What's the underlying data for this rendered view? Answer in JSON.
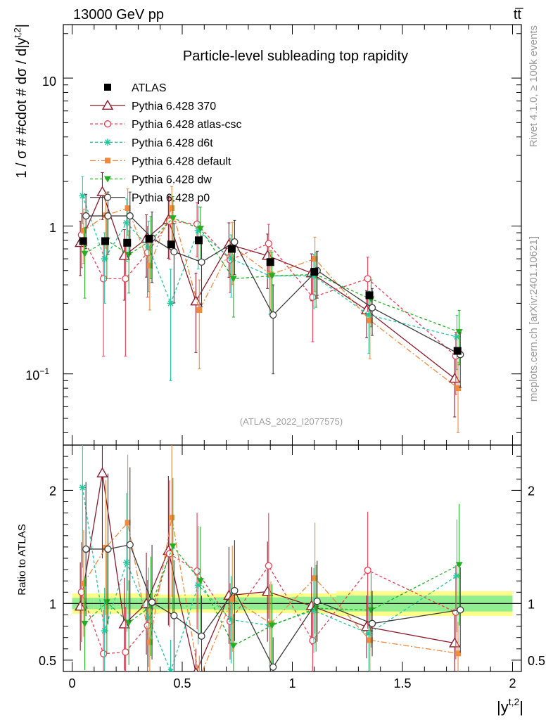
{
  "header": {
    "energy_label": "13000 GeV pp",
    "process_label": "tt̅"
  },
  "side_labels": {
    "rivet": "Rivet 4.1.0, ≥ 100k events",
    "mcplots": "mcplots.cern.ch [arXiv:2401.10621]"
  },
  "chart_data": {
    "type": "line",
    "title": "Particle-level subleading top rapidity",
    "analysis_id": "(ATLAS_2022_I2077575)",
    "ylabel": "1 / σ # #cdot # dσ / d|y^{t,2}|",
    "ylabel_main": "1 / σ # #cdot # dσ / d|y",
    "ylabel_sup": "t,2",
    "ylabel_close": "|",
    "xlabel_main": "|y",
    "xlabel_sup": "t,2",
    "xlabel_close": "|",
    "ratio_ylabel": "Ratio to ATLAS",
    "yscale": "log",
    "ylim": [
      0.033,
      23
    ],
    "ratio_ylim": [
      0.4,
      2.4
    ],
    "xlim": [
      -0.04,
      2.04
    ],
    "x_ticks": [
      0,
      0.5,
      1,
      1.5,
      2
    ],
    "x_tick_labels": [
      "0",
      "0.5",
      "1",
      "1.5",
      "2"
    ],
    "y_tick_labels": {
      "ten": "10",
      "one": "1",
      "tenth_base": "10",
      "tenth_exp": "−1"
    },
    "ratio_ticks": [
      0.5,
      1,
      2
    ],
    "ratio_tick_labels": [
      "0.5",
      "1",
      "2"
    ],
    "bin_edges": [
      0,
      0.1,
      0.2,
      0.3,
      0.4,
      0.5,
      0.65,
      0.8,
      1.0,
      1.2,
      1.5,
      2.0
    ],
    "x": [
      0.05,
      0.15,
      0.25,
      0.35,
      0.45,
      0.575,
      0.725,
      0.9,
      1.1,
      1.35,
      1.75
    ],
    "data": {
      "name": "ATLAS",
      "values": [
        0.79,
        0.79,
        0.77,
        0.82,
        0.75,
        0.8,
        0.7,
        0.57,
        0.49,
        0.34,
        0.143
      ],
      "ratio_band_inner": [
        0.05,
        0.05,
        0.05,
        0.05,
        0.05,
        0.05,
        0.055,
        0.055,
        0.06,
        0.07,
        0.07
      ],
      "ratio_band_outer": [
        0.09,
        0.09,
        0.09,
        0.09,
        0.08,
        0.08,
        0.085,
        0.085,
        0.09,
        0.11,
        0.11
      ]
    },
    "series": [
      {
        "name": "Pythia 6.428 370",
        "color": "#8b1a2b",
        "dash": "",
        "marker": "triangle-open",
        "values": [
          0.77,
          1.7,
          0.63,
          0.82,
          1.1,
          0.31,
          0.75,
          0.63,
          0.48,
          0.27,
          0.093
        ],
        "rel_err": [
          0.4,
          0.35,
          0.5,
          0.45,
          0.45,
          0.55,
          0.4,
          0.4,
          0.35,
          0.35,
          0.45
        ]
      },
      {
        "name": "Pythia 6.428 atlas-csc",
        "color": "#f03c55",
        "dash": "4,3",
        "marker": "circle-open",
        "values": [
          0.87,
          0.44,
          0.44,
          0.66,
          1.08,
          1.03,
          0.59,
          0.76,
          0.33,
          0.44,
          0.132
        ],
        "rel_err": [
          0.4,
          0.7,
          0.7,
          0.5,
          0.45,
          0.4,
          0.4,
          0.35,
          0.5,
          0.4,
          0.45
        ]
      },
      {
        "name": "Pythia 6.428 d6t",
        "color": "#1fc8a0",
        "dash": "4,3",
        "marker": "star",
        "values": [
          1.6,
          0.6,
          1.05,
          0.72,
          0.3,
          0.93,
          0.6,
          0.46,
          0.46,
          0.25,
          0.178
        ],
        "rel_err": [
          0.35,
          0.5,
          0.45,
          0.5,
          0.7,
          0.45,
          0.45,
          0.45,
          0.4,
          0.45,
          0.4
        ]
      },
      {
        "name": "Pythia 6.428 default",
        "color": "#f08a3c",
        "dash": "8,3,2,3",
        "marker": "square",
        "values": [
          0.93,
          1.18,
          1.32,
          0.54,
          1.32,
          0.27,
          0.73,
          0.47,
          0.6,
          0.23,
          0.08
        ],
        "rel_err": [
          0.4,
          0.4,
          0.35,
          0.5,
          0.4,
          0.6,
          0.45,
          0.45,
          0.4,
          0.45,
          0.5
        ]
      },
      {
        "name": "Pythia 6.428 dw",
        "color": "#22b022",
        "dash": "4,3",
        "marker": "triangle-down",
        "values": [
          0.65,
          0.8,
          0.64,
          0.8,
          1.13,
          0.96,
          0.44,
          0.46,
          0.47,
          0.32,
          0.192
        ],
        "rel_err": [
          0.5,
          0.45,
          0.45,
          0.45,
          0.4,
          0.4,
          0.45,
          0.45,
          0.4,
          0.35,
          0.4
        ]
      },
      {
        "name": "Pythia 6.428 p0",
        "color": "#3c3c3c",
        "dash": "",
        "marker": "circle-open",
        "values": [
          1.17,
          1.17,
          1.17,
          0.83,
          0.67,
          0.57,
          0.78,
          0.25,
          0.5,
          0.28,
          0.135
        ],
        "rel_err": [
          0.4,
          0.45,
          0.45,
          0.5,
          0.55,
          0.5,
          0.4,
          0.6,
          0.35,
          0.35,
          0.4
        ]
      }
    ]
  }
}
